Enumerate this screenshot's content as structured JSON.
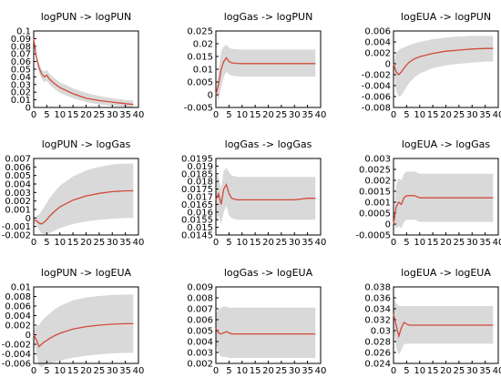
{
  "colors": {
    "band": "#d9d9d9",
    "line": "#d24a3a",
    "axis": "#000000",
    "background": "#ffffff"
  },
  "chart_data": [
    {
      "type": "line",
      "title": "logPUN -> logPUN",
      "xticks": [
        "0",
        "5",
        "10",
        "15",
        "20",
        "25",
        "30",
        "35",
        "40"
      ],
      "xlim": [
        0,
        40
      ],
      "ylim": [
        0,
        0.1
      ],
      "yticks": [
        "0",
        "0.01",
        "0.02",
        "0.03",
        "0.04",
        "0.05",
        "0.06",
        "0.07",
        "0.08",
        "0.09",
        "0.1"
      ],
      "series": [
        {
          "x": [
            0,
            1,
            2,
            3,
            4,
            5,
            6,
            8,
            10,
            15,
            20,
            25,
            30,
            35,
            38
          ],
          "values": [
            0.09,
            0.066,
            0.052,
            0.044,
            0.04,
            0.042,
            0.037,
            0.031,
            0.026,
            0.018,
            0.012,
            0.009,
            0.007,
            0.005,
            0.004
          ]
        }
      ],
      "band": {
        "x": [
          0,
          1,
          2,
          3,
          4,
          5,
          6,
          8,
          10,
          15,
          20,
          25,
          30,
          35,
          38
        ],
        "upper": [
          0.092,
          0.07,
          0.058,
          0.05,
          0.047,
          0.049,
          0.044,
          0.038,
          0.033,
          0.025,
          0.019,
          0.015,
          0.012,
          0.01,
          0.009
        ],
        "lower": [
          0.088,
          0.062,
          0.046,
          0.038,
          0.033,
          0.035,
          0.03,
          0.024,
          0.019,
          0.012,
          0.007,
          0.004,
          0.002,
          0.001,
          0.0
        ]
      }
    },
    {
      "type": "line",
      "title": "logGas -> logPUN",
      "xticks": [
        "0",
        "5",
        "10",
        "15",
        "20",
        "25",
        "30",
        "35",
        "40"
      ],
      "xlim": [
        0,
        40
      ],
      "ylim": [
        -0.005,
        0.025
      ],
      "yticks": [
        "-0.005",
        "0",
        "0.005",
        "0.01",
        "0.015",
        "0.02",
        "0.025"
      ],
      "series": [
        {
          "x": [
            0,
            1,
            2,
            3,
            4,
            5,
            6,
            8,
            10,
            15,
            20,
            25,
            30,
            35,
            38
          ],
          "values": [
            0.0,
            0.004,
            0.01,
            0.013,
            0.0145,
            0.013,
            0.0125,
            0.0123,
            0.0122,
            0.0122,
            0.0122,
            0.0122,
            0.0122,
            0.0122,
            0.0122
          ]
        }
      ],
      "band": {
        "x": [
          0,
          1,
          2,
          3,
          4,
          5,
          6,
          8,
          10,
          15,
          20,
          25,
          30,
          35,
          38
        ],
        "upper": [
          0.0,
          0.01,
          0.017,
          0.019,
          0.0195,
          0.0185,
          0.018,
          0.0178,
          0.0177,
          0.0177,
          0.0177,
          0.0177,
          0.0177,
          0.0177,
          0.0177
        ],
        "lower": [
          0.0,
          -0.002,
          0.003,
          0.007,
          0.009,
          0.008,
          0.0075,
          0.0072,
          0.0071,
          0.0071,
          0.0071,
          0.0071,
          0.0071,
          0.0071,
          0.0071
        ]
      }
    },
    {
      "type": "line",
      "title": "logEUA -> logPUN",
      "xticks": [
        "0",
        "5",
        "10",
        "15",
        "20",
        "25",
        "30",
        "35",
        "40"
      ],
      "xlim": [
        0,
        40
      ],
      "ylim": [
        -0.008,
        0.006
      ],
      "yticks": [
        "-0.008",
        "-0.006",
        "-0.004",
        "-0.002",
        "0",
        "0.002",
        "0.004",
        "0.006"
      ],
      "series": [
        {
          "x": [
            0,
            1,
            2,
            3,
            4,
            5,
            6,
            8,
            10,
            15,
            20,
            25,
            30,
            35,
            38
          ],
          "values": [
            0.0,
            -0.0015,
            -0.002,
            -0.0015,
            -0.0008,
            -0.0002,
            0.0003,
            0.0009,
            0.0013,
            0.0019,
            0.0023,
            0.0025,
            0.0027,
            0.0028,
            0.0028
          ]
        }
      ],
      "band": {
        "x": [
          0,
          1,
          2,
          3,
          4,
          5,
          6,
          8,
          10,
          15,
          20,
          25,
          30,
          35,
          38
        ],
        "upper": [
          0.0,
          0.002,
          0.0025,
          0.0028,
          0.003,
          0.0032,
          0.0034,
          0.0037,
          0.004,
          0.0045,
          0.0048,
          0.005,
          0.0051,
          0.0051,
          0.0051
        ],
        "lower": [
          0.0,
          -0.005,
          -0.006,
          -0.0058,
          -0.005,
          -0.0042,
          -0.0035,
          -0.0025,
          -0.0018,
          -0.0008,
          -0.0003,
          0.0,
          0.0002,
          0.0004,
          0.0004
        ]
      }
    },
    {
      "type": "line",
      "title": "logPUN -> logGas",
      "xticks": [
        "0",
        "5",
        "10",
        "15",
        "20",
        "25",
        "30",
        "35",
        "40"
      ],
      "xlim": [
        0,
        40
      ],
      "ylim": [
        -0.002,
        0.007
      ],
      "yticks": [
        "-0.002",
        "-0.001",
        "0",
        "0.001",
        "0.002",
        "0.003",
        "0.004",
        "0.005",
        "0.006",
        "0.007"
      ],
      "series": [
        {
          "x": [
            0,
            1,
            2,
            3,
            4,
            5,
            6,
            8,
            10,
            15,
            20,
            25,
            30,
            35,
            38
          ],
          "values": [
            -0.0003,
            -0.0003,
            -0.0006,
            -0.0007,
            -0.0005,
            -0.0002,
            0.0002,
            0.0008,
            0.0013,
            0.0021,
            0.0026,
            0.0029,
            0.0031,
            0.0032,
            0.0032
          ]
        }
      ],
      "band": {
        "x": [
          0,
          1,
          2,
          3,
          4,
          5,
          6,
          8,
          10,
          15,
          20,
          25,
          30,
          35,
          38
        ],
        "upper": [
          0.0,
          0.0002,
          0.0004,
          0.0008,
          0.0013,
          0.0018,
          0.0023,
          0.0031,
          0.0038,
          0.0049,
          0.0056,
          0.006,
          0.0063,
          0.0064,
          0.0064
        ],
        "lower": [
          -0.0006,
          -0.0008,
          -0.0014,
          -0.0018,
          -0.0019,
          -0.0019,
          -0.0018,
          -0.0015,
          -0.0012,
          -0.0007,
          -0.0004,
          -0.0002,
          -0.0001,
          0.0,
          0.0
        ]
      }
    },
    {
      "type": "line",
      "title": "logGas -> logGas",
      "xticks": [
        "0",
        "5",
        "10",
        "15",
        "20",
        "25",
        "30",
        "35",
        "40"
      ],
      "xlim": [
        0,
        40
      ],
      "ylim": [
        0.0145,
        0.0195
      ],
      "yticks": [
        "0.0145",
        "0.015",
        "0.0155",
        "0.016",
        "0.0165",
        "0.017",
        "0.0175",
        "0.018",
        "0.0185",
        "0.019",
        "0.0195"
      ],
      "series": [
        {
          "x": [
            0,
            1,
            2,
            3,
            4,
            5,
            6,
            8,
            10,
            15,
            20,
            25,
            30,
            35,
            38
          ],
          "values": [
            0.0168,
            0.0172,
            0.0165,
            0.0175,
            0.0178,
            0.0172,
            0.0169,
            0.0168,
            0.0168,
            0.0168,
            0.0168,
            0.0168,
            0.0168,
            0.0169,
            0.0169
          ]
        }
      ],
      "band": {
        "x": [
          0,
          1,
          2,
          3,
          4,
          5,
          6,
          8,
          10,
          15,
          20,
          25,
          30,
          35,
          38
        ],
        "upper": [
          0.0185,
          0.0183,
          0.0175,
          0.0187,
          0.0189,
          0.0186,
          0.0184,
          0.0183,
          0.0183,
          0.0183,
          0.0183,
          0.0183,
          0.0183,
          0.0183,
          0.0183
        ],
        "lower": [
          0.0152,
          0.0158,
          0.0152,
          0.016,
          0.0164,
          0.0158,
          0.0156,
          0.0155,
          0.0155,
          0.0155,
          0.0155,
          0.0155,
          0.0155,
          0.0155,
          0.0155
        ]
      }
    },
    {
      "type": "line",
      "title": "logEUA -> logGas",
      "xticks": [
        "0",
        "5",
        "10",
        "15",
        "20",
        "25",
        "30",
        "35",
        "40"
      ],
      "xlim": [
        0,
        40
      ],
      "ylim": [
        -0.0005,
        0.003
      ],
      "yticks": [
        "-0.0005",
        "0",
        "0.0005",
        "0.001",
        "0.0015",
        "0.002",
        "0.0025",
        "0.003"
      ],
      "series": [
        {
          "x": [
            0,
            1,
            2,
            3,
            4,
            5,
            6,
            8,
            10,
            15,
            20,
            25,
            30,
            35,
            38
          ],
          "values": [
            0.0,
            0.0008,
            0.001,
            0.0009,
            0.0012,
            0.0013,
            0.0013,
            0.0013,
            0.0012,
            0.0012,
            0.0012,
            0.0012,
            0.0012,
            0.0012,
            0.0012
          ]
        }
      ],
      "band": {
        "x": [
          0,
          1,
          2,
          3,
          4,
          5,
          6,
          8,
          10,
          15,
          20,
          25,
          30,
          35,
          38
        ],
        "upper": [
          0.0,
          0.0018,
          0.0021,
          0.002,
          0.0023,
          0.0024,
          0.0024,
          0.0024,
          0.0023,
          0.0023,
          0.0023,
          0.0023,
          0.0023,
          0.0023,
          0.0023
        ],
        "lower": [
          0.0,
          -0.0002,
          -0.0001,
          -0.0002,
          0.0001,
          0.0002,
          0.0002,
          0.0002,
          0.0001,
          0.0001,
          0.0001,
          0.0001,
          0.0001,
          0.0001,
          0.0001
        ]
      }
    },
    {
      "type": "line",
      "title": "logPUN -> logEUA",
      "xticks": [
        "0",
        "5",
        "10",
        "15",
        "20",
        "25",
        "30",
        "35",
        "40"
      ],
      "xlim": [
        0,
        40
      ],
      "ylim": [
        -0.006,
        0.01
      ],
      "yticks": [
        "-0.006",
        "-0.004",
        "-0.002",
        "0",
        "0.002",
        "0.004",
        "0.006",
        "0.008",
        "0.01"
      ],
      "series": [
        {
          "x": [
            0,
            1,
            2,
            3,
            4,
            5,
            6,
            8,
            10,
            15,
            20,
            25,
            30,
            35,
            38
          ],
          "values": [
            0.0,
            -0.001,
            -0.0025,
            -0.002,
            -0.0015,
            -0.0012,
            -0.0008,
            -0.0002,
            0.0003,
            0.0012,
            0.0017,
            0.002,
            0.0022,
            0.0023,
            0.0023
          ]
        }
      ],
      "band": {
        "x": [
          0,
          1,
          2,
          3,
          4,
          5,
          6,
          8,
          10,
          15,
          20,
          25,
          30,
          35,
          38
        ],
        "upper": [
          0.0008,
          0.002,
          0.002,
          0.0028,
          0.0034,
          0.0039,
          0.0044,
          0.0053,
          0.006,
          0.0072,
          0.0078,
          0.0081,
          0.0083,
          0.0084,
          0.0084
        ],
        "lower": [
          -0.0008,
          -0.004,
          -0.0065,
          -0.0068,
          -0.0064,
          -0.0062,
          -0.006,
          -0.0057,
          -0.0054,
          -0.0048,
          -0.0044,
          -0.0041,
          -0.0039,
          -0.0038,
          -0.0038
        ]
      }
    },
    {
      "type": "line",
      "title": "logGas -> logEUA",
      "xticks": [
        "0",
        "5",
        "10",
        "15",
        "20",
        "25",
        "30",
        "35",
        "40"
      ],
      "xlim": [
        0,
        40
      ],
      "ylim": [
        0.002,
        0.009
      ],
      "yticks": [
        "0.002",
        "0.003",
        "0.004",
        "0.005",
        "0.006",
        "0.007",
        "0.008",
        "0.009"
      ],
      "series": [
        {
          "x": [
            0,
            1,
            2,
            3,
            4,
            5,
            6,
            8,
            10,
            15,
            20,
            25,
            30,
            35,
            38
          ],
          "values": [
            0.0052,
            0.0048,
            0.0047,
            0.0048,
            0.0049,
            0.0048,
            0.0047,
            0.0047,
            0.0047,
            0.0047,
            0.0047,
            0.0047,
            0.0047,
            0.0047,
            0.0047
          ]
        }
      ],
      "band": {
        "x": [
          0,
          1,
          2,
          3,
          4,
          5,
          6,
          8,
          10,
          15,
          20,
          25,
          30,
          35,
          38
        ],
        "upper": [
          0.0066,
          0.0069,
          0.0071,
          0.0072,
          0.0072,
          0.0071,
          0.0071,
          0.0071,
          0.0071,
          0.0071,
          0.0071,
          0.0071,
          0.0071,
          0.0071,
          0.0071
        ],
        "lower": [
          0.0038,
          0.003,
          0.0026,
          0.0026,
          0.0026,
          0.0025,
          0.0025,
          0.0025,
          0.0025,
          0.0025,
          0.0025,
          0.0025,
          0.0025,
          0.0025,
          0.0025
        ]
      }
    },
    {
      "type": "line",
      "title": "logEUA -> logEUA",
      "xticks": [
        "0",
        "5",
        "10",
        "15",
        "20",
        "25",
        "30",
        "35",
        "40"
      ],
      "xlim": [
        0,
        40
      ],
      "ylim": [
        0.024,
        0.038
      ],
      "yticks": [
        "0.024",
        "0.026",
        "0.028",
        "0.03",
        "0.032",
        "0.034",
        "0.036",
        "0.038"
      ],
      "series": [
        {
          "x": [
            0,
            1,
            2,
            3,
            4,
            5,
            6,
            8,
            10,
            15,
            20,
            25,
            30,
            35,
            38
          ],
          "values": [
            0.033,
            0.031,
            0.029,
            0.0305,
            0.0315,
            0.0312,
            0.031,
            0.031,
            0.031,
            0.031,
            0.031,
            0.031,
            0.031,
            0.031,
            0.031
          ]
        }
      ],
      "band": {
        "x": [
          0,
          1,
          2,
          3,
          4,
          5,
          6,
          8,
          10,
          15,
          20,
          25,
          30,
          35,
          38
        ],
        "upper": [
          0.036,
          0.035,
          0.0345,
          0.0345,
          0.0345,
          0.0345,
          0.0345,
          0.0345,
          0.0345,
          0.0345,
          0.0345,
          0.0345,
          0.0345,
          0.0345,
          0.0345
        ],
        "lower": [
          0.03,
          0.027,
          0.0255,
          0.0265,
          0.0275,
          0.0276,
          0.0276,
          0.0276,
          0.0276,
          0.0276,
          0.0276,
          0.0276,
          0.0276,
          0.0276,
          0.0276
        ]
      }
    }
  ]
}
